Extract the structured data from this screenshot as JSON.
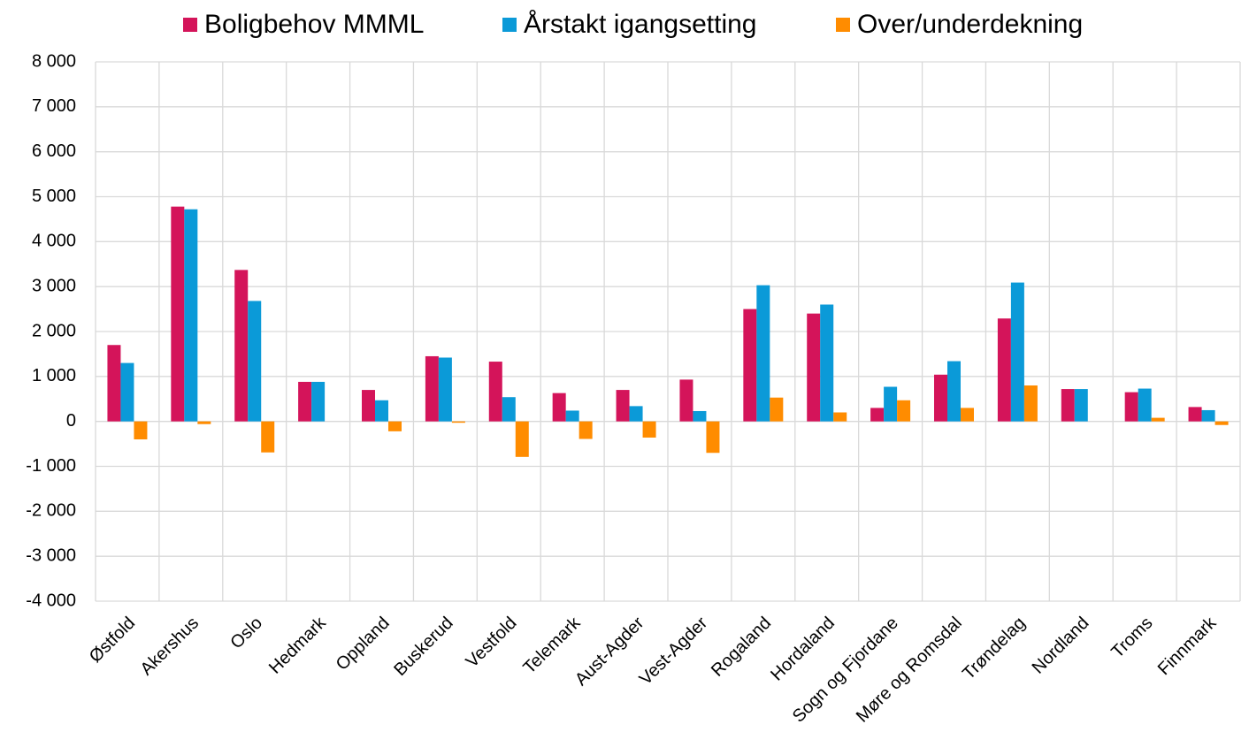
{
  "chart_data": {
    "type": "bar",
    "categories": [
      "Østfold",
      "Akershus",
      "Oslo",
      "Hedmark",
      "Oppland",
      "Buskerud",
      "Vestfold",
      "Telemark",
      "Aust-Agder",
      "Vest-Agder",
      "Rogaland",
      "Hordaland",
      "Sogn og Fjordane",
      "Møre og Romsdal",
      "Trøndelag",
      "Nordland",
      "Troms",
      "Finnmark"
    ],
    "series": [
      {
        "name": "Boligbehov MMML",
        "color": "#d4145a",
        "values": [
          1700,
          4780,
          3370,
          880,
          700,
          1450,
          1330,
          630,
          700,
          930,
          2500,
          2400,
          300,
          1040,
          2290,
          720,
          650,
          320
        ]
      },
      {
        "name": "Årstakt igangsetting",
        "color": "#0b9ad8",
        "values": [
          1300,
          4720,
          2680,
          880,
          470,
          1420,
          540,
          240,
          340,
          230,
          3030,
          2600,
          770,
          1340,
          3090,
          720,
          730,
          250
        ]
      },
      {
        "name": "Over/underdekning",
        "color": "#ff8c00",
        "values": [
          -400,
          -60,
          -690,
          0,
          -220,
          -30,
          -790,
          -390,
          -360,
          -700,
          530,
          200,
          470,
          300,
          800,
          0,
          80,
          -80
        ]
      }
    ],
    "ylim": [
      -4000,
      8000
    ],
    "yticks": [
      {
        "value": -4000,
        "label": "-4 000"
      },
      {
        "value": -3000,
        "label": "-3 000"
      },
      {
        "value": -2000,
        "label": "-2 000"
      },
      {
        "value": -1000,
        "label": "-1 000"
      },
      0,
      {
        "value": 1000,
        "label": "1 000"
      },
      {
        "value": 2000,
        "label": "2 000"
      },
      {
        "value": 3000,
        "label": "3 000"
      },
      {
        "value": 4000,
        "label": "4 000"
      },
      {
        "value": 5000,
        "label": "5 000"
      },
      {
        "value": 6000,
        "label": "6 000"
      },
      {
        "value": 7000,
        "label": "7 000"
      },
      {
        "value": 8000,
        "label": "8 000"
      }
    ],
    "grid": true,
    "legend": "top"
  }
}
